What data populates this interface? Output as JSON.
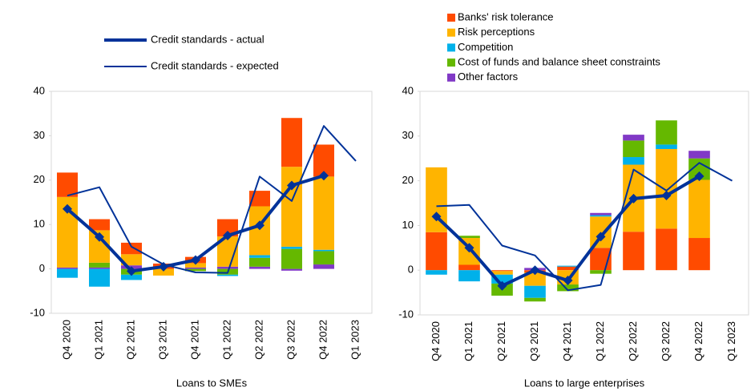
{
  "chart_data": [
    {
      "type": "bar",
      "x_label": "Loans to SMEs",
      "categories": [
        "Q4 2020",
        "Q1 2021",
        "Q2 2021",
        "Q3 2021",
        "Q4 2021",
        "Q1 2022",
        "Q2 2022",
        "Q3 2022",
        "Q4 2022",
        "Q1 2023"
      ],
      "ylim": [
        -10,
        40
      ],
      "yticks": [
        -10,
        0,
        10,
        20,
        30,
        40
      ],
      "legend": "top-center",
      "series": [
        {
          "type": "bar",
          "color": "#8139c6",
          "values": [
            0.3,
            0.3,
            0.8,
            0,
            0.3,
            0.5,
            0.5,
            -0.4,
            1,
            null
          ]
        },
        {
          "type": "bar",
          "color": "#65b800",
          "values": [
            0,
            1.1,
            -1.3,
            0,
            -0.5,
            -1.3,
            2,
            4.5,
            3,
            null
          ]
        },
        {
          "type": "bar",
          "color": "#00b1ea",
          "values": [
            -2,
            -4,
            -1.2,
            0,
            0,
            -0.3,
            0.6,
            0.5,
            0.3,
            null
          ]
        },
        {
          "type": "bar",
          "color": "#ffb400",
          "values": [
            15.9,
            7.3,
            2.5,
            -1.5,
            1,
            6.8,
            11,
            18,
            16.5,
            null
          ]
        },
        {
          "type": "bar",
          "color": "#ff4b00",
          "values": [
            5.5,
            2.5,
            2.6,
            1.2,
            1.4,
            3.9,
            3.5,
            11,
            7.2,
            null
          ]
        },
        {
          "type": "line",
          "name": "Credit standards - actual",
          "color": "#003299",
          "width": 4,
          "markers": true,
          "values": [
            13.5,
            7.2,
            -0.5,
            0.5,
            2,
            7.5,
            9.8,
            18.8,
            21,
            null
          ]
        },
        {
          "type": "line",
          "name": "Credit standards - expected",
          "color": "#003299",
          "width": 2,
          "markers": false,
          "values": [
            16.5,
            18.4,
            5,
            1,
            -0.8,
            -0.9,
            20.8,
            15.3,
            32.2,
            24.3
          ]
        }
      ]
    },
    {
      "type": "bar",
      "x_label": "Loans to large enterprises",
      "categories": [
        "Q4 2020",
        "Q1 2021",
        "Q2 2021",
        "Q3 2021",
        "Q4 2021",
        "Q1 2022",
        "Q2 2022",
        "Q3 2022",
        "Q4 2022",
        "Q1 2023"
      ],
      "ylim": [
        -10,
        40
      ],
      "yticks": [
        -10,
        0,
        10,
        20,
        30,
        40
      ],
      "legend": "top-left",
      "series": [
        {
          "type": "bar",
          "name": "Banks' risk tolerance",
          "color": "#ff4b00",
          "values": [
            8.5,
            1.2,
            -0.2,
            -0.5,
            0.8,
            5,
            8.6,
            9.3,
            7.2,
            null
          ]
        },
        {
          "type": "bar",
          "name": "Risk perceptions",
          "color": "#ffb400",
          "values": [
            14.5,
            6,
            -0.8,
            -3,
            -3.2,
            7,
            15,
            17.8,
            13,
            null
          ]
        },
        {
          "type": "bar",
          "name": "Competition",
          "color": "#00b1ea",
          "values": [
            -1,
            -2.5,
            -2,
            -2.7,
            0.2,
            0.3,
            1.7,
            1,
            0,
            null
          ]
        },
        {
          "type": "bar",
          "name": "Cost of funds and balance sheet constraints",
          "color": "#65b800",
          "values": [
            0,
            0.5,
            -2.7,
            -0.8,
            -1.5,
            -0.8,
            3.7,
            5.4,
            4.8,
            null
          ]
        },
        {
          "type": "bar",
          "name": "Other factors",
          "color": "#8139c6",
          "values": [
            0,
            0,
            0,
            0.5,
            0,
            0.5,
            1.3,
            0,
            1.7,
            null
          ]
        },
        {
          "type": "line",
          "color": "#003299",
          "width": 4,
          "markers": true,
          "values": [
            12,
            5,
            -3.5,
            0,
            -2.3,
            7.5,
            16,
            16.7,
            21,
            null
          ]
        },
        {
          "type": "line",
          "color": "#003299",
          "width": 2,
          "markers": false,
          "values": [
            14.3,
            14.6,
            5.5,
            3.3,
            -4.5,
            -3.3,
            22.5,
            17.8,
            24,
            20
          ]
        }
      ]
    }
  ]
}
